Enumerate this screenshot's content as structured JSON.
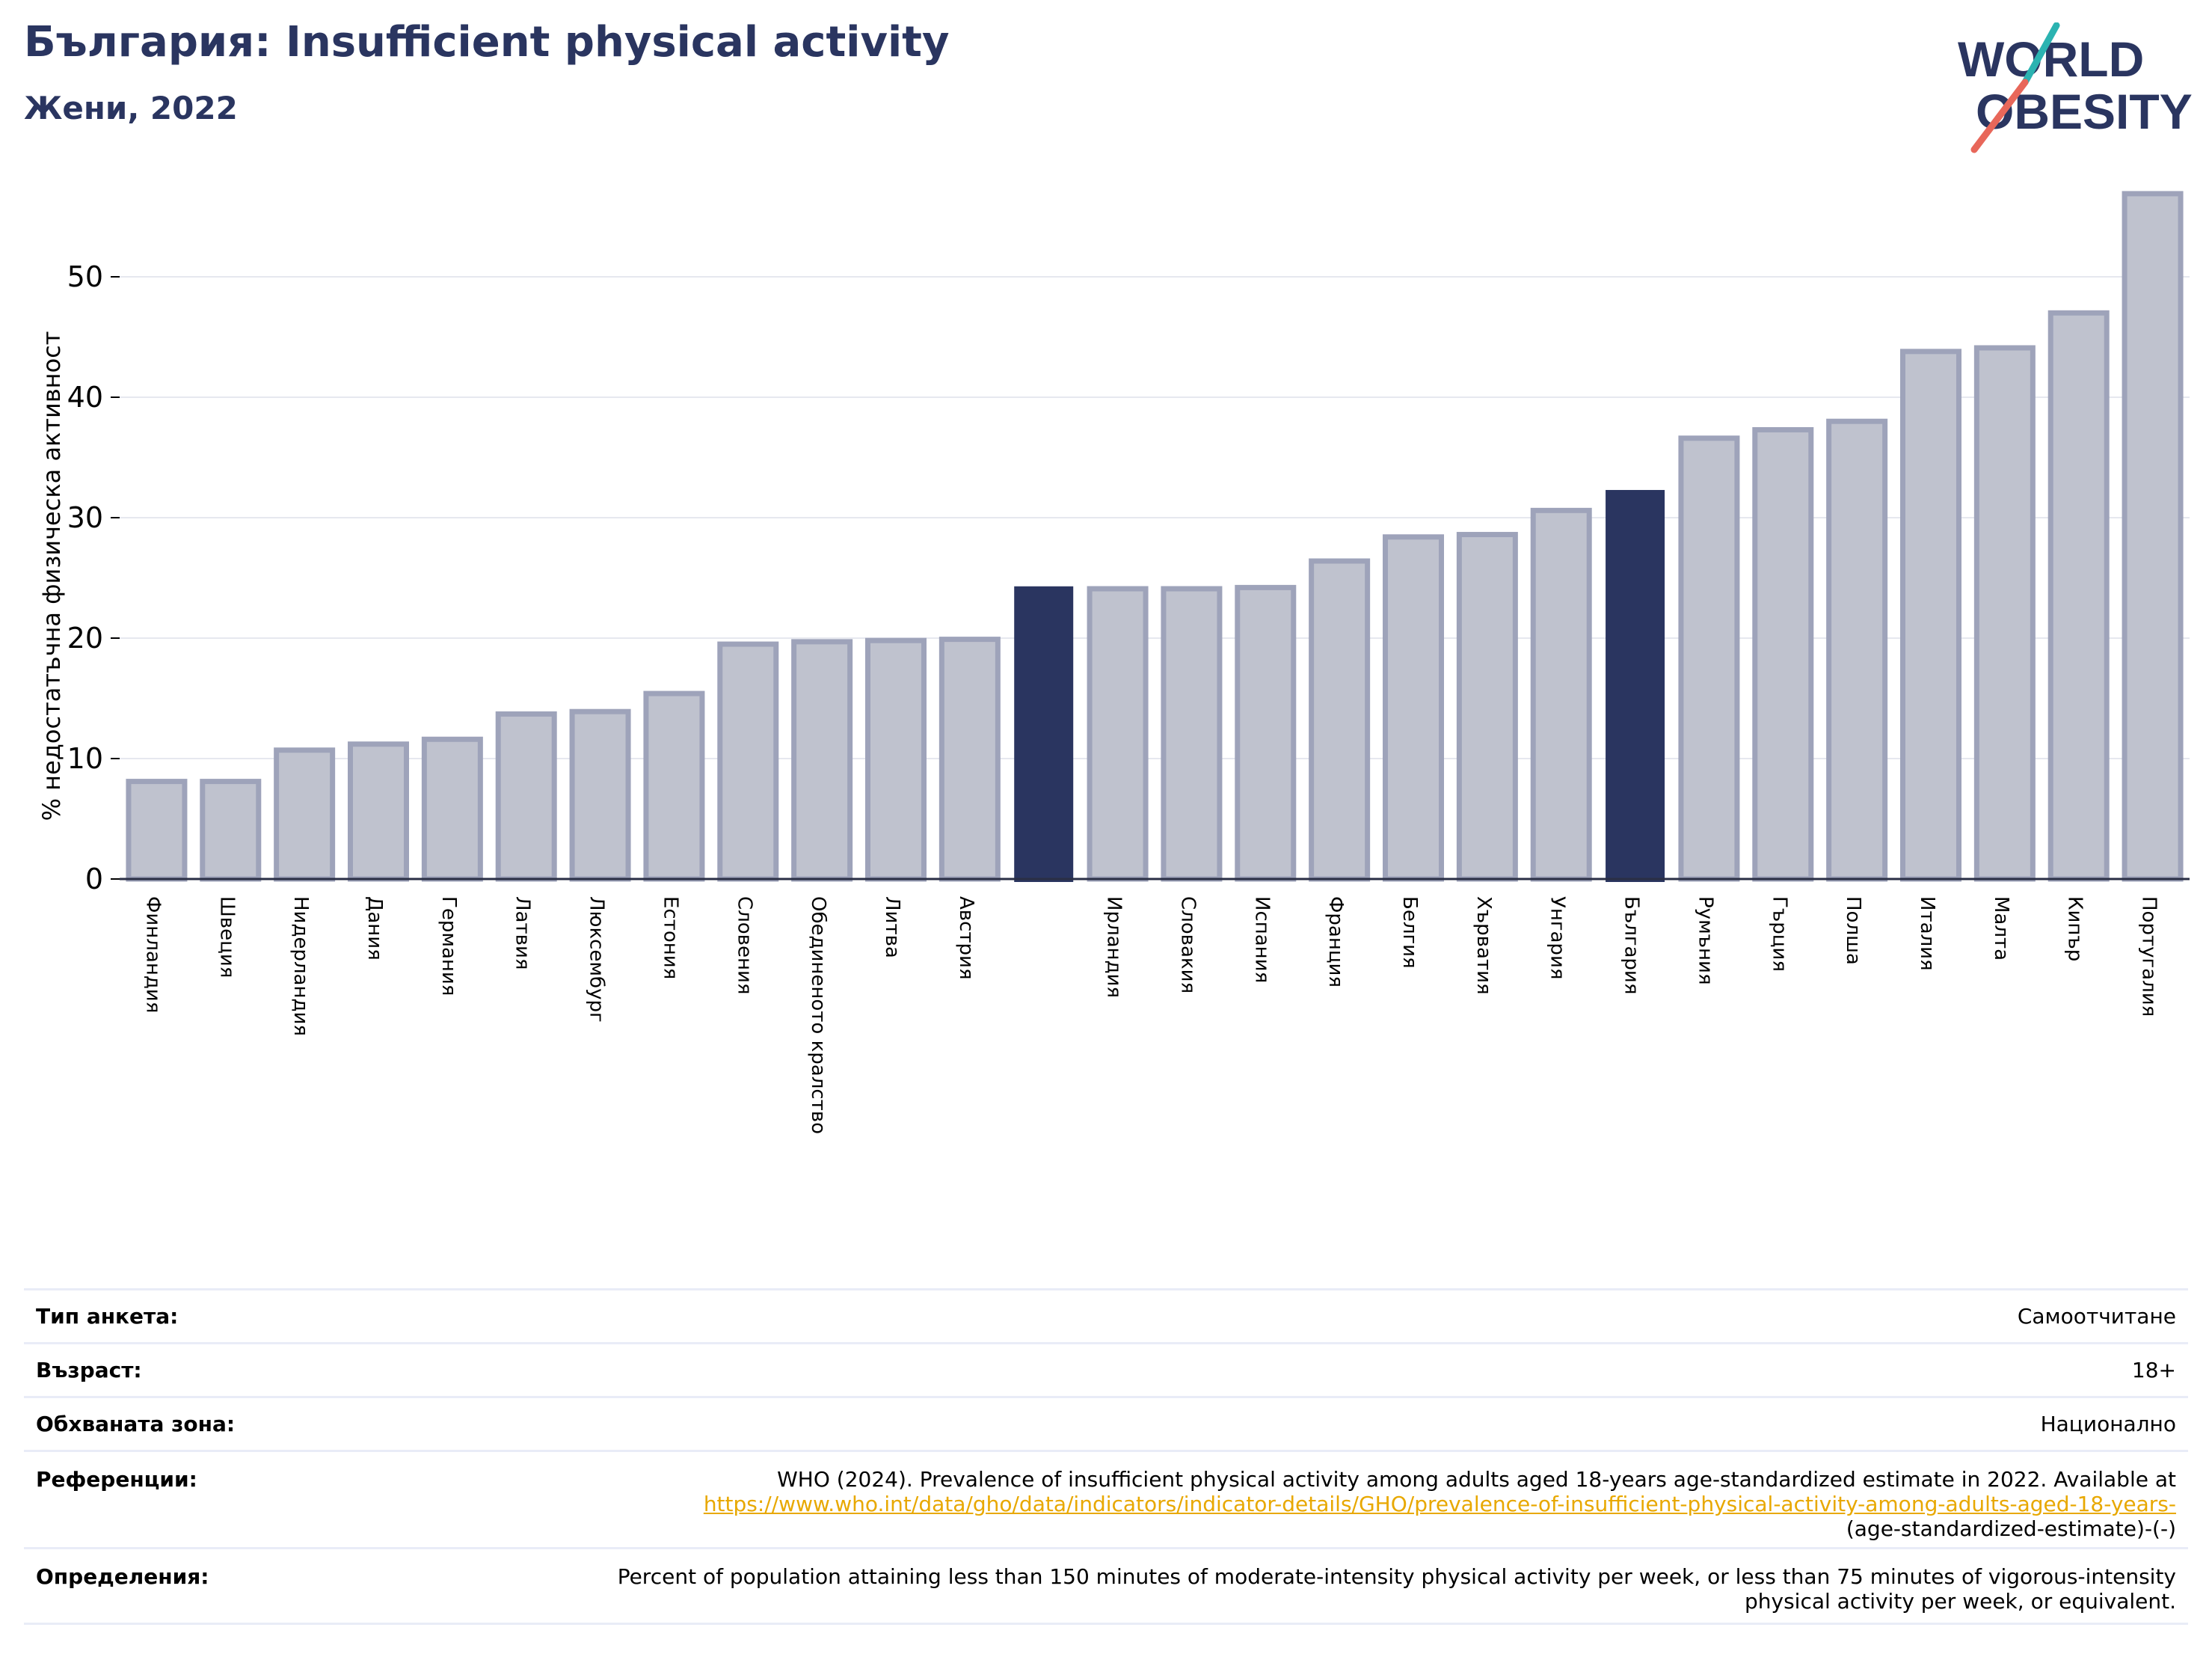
{
  "title": "България: Insufficient physical activity",
  "subtitle": "Жени, 2022",
  "logo": {
    "line1": "WORLD",
    "line2": "OBESITY",
    "colors": {
      "text": "#2a3560",
      "slash_top": "#2bb3b1",
      "slash_bottom": "#e8675a"
    }
  },
  "colors": {
    "bar_default": "#bfc2ce",
    "bar_edge": "#9ea3ba",
    "bar_highlight": "#2a3560",
    "grid": "#e6e8ef"
  },
  "chart_data": {
    "type": "bar",
    "ylabel": "% недостатъчна физическа активност",
    "yticks": [
      0,
      10,
      20,
      30,
      40,
      50
    ],
    "ylim": [
      0,
      60
    ],
    "grid": true,
    "categories": [
      "Финландия",
      "Швеция",
      "Нидерландия",
      "Дания",
      "Германия",
      "Латвия",
      "Люксембург",
      "Естония",
      "Словения",
      "Обединеното кралство",
      "Литва",
      "Австрия",
      "",
      "Ирландия",
      "Словакия",
      "Испания",
      "Франция",
      "Белгия",
      "Хърватия",
      "Унгария",
      "България",
      "Румъния",
      "Гърция",
      "Полша",
      "Италия",
      "Малта",
      "Кипър",
      "Португалия"
    ],
    "values": [
      8.1,
      8.1,
      10.7,
      11.2,
      11.6,
      13.7,
      13.9,
      15.4,
      19.5,
      19.7,
      19.8,
      19.9,
      24.3,
      24.1,
      24.1,
      24.2,
      26.4,
      28.4,
      28.6,
      30.6,
      32.3,
      36.6,
      37.3,
      38.0,
      43.8,
      44.1,
      47.0,
      56.9
    ],
    "highlight": [
      12,
      20
    ]
  },
  "info": {
    "survey_label": "Тип анкета:",
    "survey_value": "Самоотчитане",
    "age_label": "Възраст:",
    "age_value": "18+",
    "area_label": "Обхваната зона:",
    "area_value": "Национално",
    "refs_label": "Референции:",
    "refs_text": "WHO (2024). Prevalence of insufficient physical activity among adults aged 18-years age-standardized estimate in 2022. Available at",
    "refs_link": "https://www.who.int/data/gho/data/indicators/indicator-details/GHO/prevalence-of-insufficient-physical-activity-among-adults-aged-18-years-",
    "refs_tail": "(age-standardized-estimate)-(-)",
    "defs_label": "Определения:",
    "defs_text": "Percent of population attaining less than 150 minutes of moderate-intensity physical activity per week, or less than 75 minutes of vigorous-intensity physical activity per week, or equivalent."
  }
}
